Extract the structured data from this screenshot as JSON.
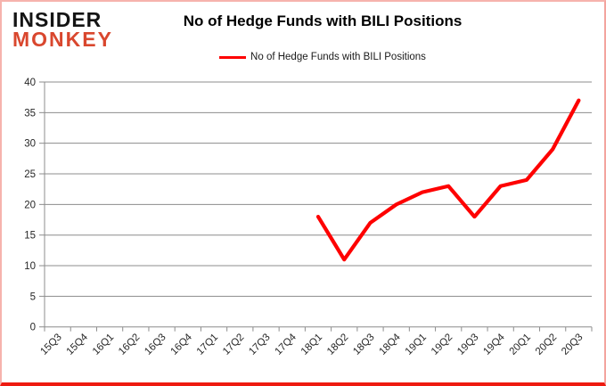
{
  "logo": {
    "line1": "INSIDER",
    "line2": "MONKEY",
    "accent_color": "#d9472e"
  },
  "header": {
    "title": "No of Hedge Funds with BILI Positions"
  },
  "legend": {
    "label": "No of Hedge Funds with BILI Positions",
    "swatch_color": "#fe0000",
    "position": "top"
  },
  "chart_data": {
    "type": "line",
    "title": "No of Hedge Funds with BILI Positions",
    "categories": [
      "15Q3",
      "15Q4",
      "16Q1",
      "16Q2",
      "16Q3",
      "16Q4",
      "17Q1",
      "17Q2",
      "17Q3",
      "17Q4",
      "18Q1",
      "18Q2",
      "18Q3",
      "18Q4",
      "19Q1",
      "19Q2",
      "19Q3",
      "19Q4",
      "20Q1",
      "20Q2",
      "20Q3"
    ],
    "series": [
      {
        "name": "No of Hedge Funds with BILI Positions",
        "color": "#fe0000",
        "values": [
          null,
          null,
          null,
          null,
          null,
          null,
          null,
          null,
          null,
          null,
          18,
          11,
          17,
          20,
          22,
          23,
          18,
          23,
          24,
          29,
          37
        ]
      }
    ],
    "xlabel": "",
    "ylabel": "",
    "ylim": [
      0,
      40
    ],
    "yticks": [
      0,
      5,
      10,
      15,
      20,
      25,
      30,
      35,
      40
    ],
    "grid": "horizontal",
    "grid_color": "#8c8c8c",
    "axis_color": "#8c8c8c",
    "tick_label_color": "#262626",
    "legend_position": "top",
    "x_label_rotation": 45
  }
}
